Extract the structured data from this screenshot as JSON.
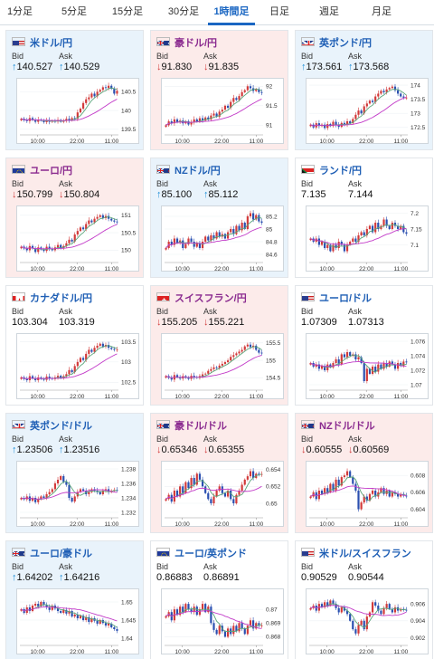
{
  "tabs": [
    {
      "label": "1分足"
    },
    {
      "label": "5分足"
    },
    {
      "label": "15分足"
    },
    {
      "label": "30分足"
    },
    {
      "label": "1時間足",
      "active": true
    },
    {
      "label": "日足"
    },
    {
      "label": "週足"
    },
    {
      "label": "月足"
    }
  ],
  "labels": {
    "bid": "Bid",
    "ask": "Ask"
  },
  "colors": {
    "up_candle": "#d23a3a",
    "down_candle": "#2a4fb0",
    "ma_short": "#5aa57a",
    "ma_long": "#c23ac8",
    "active_tab": "#1a66c2"
  },
  "cards": [
    {
      "flag": "us-jp-flag",
      "pair": "米ドル/円",
      "trend": "up",
      "bid": "140.527",
      "ask": "140.529",
      "chart_data": {
        "type": "candlestick",
        "x_ticks": [
          "10:00",
          "22:00",
          "11:00"
        ],
        "y_ticks": [
          "140.5",
          "140",
          "139.5"
        ],
        "ylim": [
          139.4,
          140.75
        ],
        "closes": [
          139.78,
          139.74,
          139.72,
          139.8,
          139.75,
          139.7,
          139.76,
          139.73,
          139.69,
          139.74,
          139.7,
          139.72,
          139.71,
          139.75,
          139.7,
          139.73,
          139.78,
          139.74,
          139.8,
          139.78,
          139.95,
          140.05,
          140.2,
          140.3,
          140.35,
          140.45,
          140.38,
          140.5,
          140.55,
          140.62,
          140.6,
          140.66,
          140.58,
          140.45,
          140.527
        ]
      }
    },
    {
      "flag": "au-flag",
      "pair": "豪ドル/円",
      "trend": "down",
      "bid": "91.830",
      "ask": "91.835",
      "chart_data": {
        "type": "candlestick",
        "x_ticks": [
          "10:00",
          "22:00",
          "11:00"
        ],
        "y_ticks": [
          "92",
          "91.5",
          "91"
        ],
        "ylim": [
          90.8,
          92.1
        ],
        "closes": [
          91.0,
          91.1,
          91.05,
          91.15,
          91.08,
          91.12,
          91.05,
          91.1,
          91.02,
          91.08,
          91.15,
          91.1,
          91.18,
          91.12,
          91.2,
          91.15,
          91.25,
          91.3,
          91.22,
          91.35,
          91.4,
          91.5,
          91.45,
          91.6,
          91.7,
          91.65,
          91.75,
          91.85,
          91.9,
          92.0,
          91.95,
          91.88,
          91.92,
          91.85,
          91.83
        ]
      }
    },
    {
      "flag": "gb-flag",
      "pair": "英ポンド/円",
      "trend": "up",
      "bid": "173.561",
      "ask": "173.568",
      "chart_data": {
        "type": "candlestick",
        "x_ticks": [
          "10:00",
          "22:00",
          "11:00"
        ],
        "y_ticks": [
          "174",
          "173.5",
          "173",
          "172.5"
        ],
        "ylim": [
          172.3,
          174.1
        ],
        "closes": [
          172.6,
          172.5,
          172.65,
          172.55,
          172.6,
          172.48,
          172.62,
          172.55,
          172.7,
          172.58,
          172.52,
          172.66,
          172.6,
          172.72,
          172.65,
          172.8,
          172.95,
          173.1,
          173.0,
          173.25,
          173.35,
          173.45,
          173.4,
          173.6,
          173.7,
          173.8,
          173.75,
          173.85,
          173.9,
          173.95,
          173.82,
          173.7,
          173.6,
          173.56,
          173.561
        ]
      }
    },
    {
      "flag": "eu-flag",
      "pair": "ユーロ/円",
      "trend": "down",
      "bid": "150.799",
      "ask": "150.804",
      "chart_data": {
        "type": "candlestick",
        "x_ticks": [
          "10:00",
          "22:00",
          "11:00"
        ],
        "y_ticks": [
          "151",
          "150.5",
          "150"
        ],
        "ylim": [
          149.7,
          151.15
        ],
        "closes": [
          150.1,
          150.05,
          150.0,
          150.12,
          150.05,
          149.95,
          150.08,
          150.02,
          149.98,
          150.1,
          150.05,
          150.0,
          150.08,
          150.15,
          150.05,
          150.12,
          150.2,
          150.3,
          150.25,
          150.45,
          150.55,
          150.65,
          150.6,
          150.75,
          150.85,
          150.8,
          150.9,
          150.95,
          151.0,
          150.92,
          150.98,
          150.9,
          150.85,
          150.82,
          150.799
        ]
      }
    },
    {
      "flag": "nz-flag",
      "pair": "NZドル/円",
      "trend": "up",
      "bid": "85.100",
      "ask": "85.112",
      "chart_data": {
        "type": "candlestick",
        "x_ticks": [
          "10:00",
          "22:00",
          "11:00"
        ],
        "y_ticks": [
          "85.2",
          "85",
          "84.8",
          "84.6"
        ],
        "ylim": [
          84.5,
          85.3
        ],
        "closes": [
          84.7,
          84.8,
          84.75,
          84.85,
          84.78,
          84.82,
          84.7,
          84.76,
          84.85,
          84.8,
          84.72,
          84.78,
          84.7,
          84.8,
          84.88,
          84.82,
          84.9,
          84.85,
          84.95,
          84.88,
          84.92,
          84.85,
          84.95,
          85.0,
          84.92,
          85.05,
          84.98,
          85.1,
          85.0,
          85.2,
          85.25,
          85.15,
          85.22,
          85.12,
          85.1
        ]
      }
    },
    {
      "flag": "za-flag",
      "pair": "ランド/円",
      "trend": "flat",
      "bid": "7.135",
      "ask": "7.144",
      "chart_data": {
        "type": "candlestick",
        "x_ticks": [
          "10:00",
          "22:00",
          "11:00"
        ],
        "y_ticks": [
          "7.2",
          "7.15",
          "7.1"
        ],
        "ylim": [
          7.05,
          7.21
        ],
        "closes": [
          7.12,
          7.11,
          7.12,
          7.1,
          7.11,
          7.09,
          7.1,
          7.08,
          7.1,
          7.09,
          7.11,
          7.1,
          7.08,
          7.1,
          7.11,
          7.12,
          7.11,
          7.13,
          7.14,
          7.13,
          7.15,
          7.16,
          7.14,
          7.17,
          7.15,
          7.16,
          7.18,
          7.16,
          7.15,
          7.17,
          7.16,
          7.15,
          7.16,
          7.14,
          7.135
        ]
      }
    },
    {
      "flag": "ca-flag",
      "pair": "カナダドル/円",
      "trend": "flat",
      "bid": "103.304",
      "ask": "103.319",
      "chart_data": {
        "type": "candlestick",
        "x_ticks": [
          "10:00",
          "22:00",
          "11:00"
        ],
        "y_ticks": [
          "103.5",
          "103",
          "102.5"
        ],
        "ylim": [
          102.35,
          103.6
        ],
        "closes": [
          102.62,
          102.58,
          102.55,
          102.65,
          102.6,
          102.55,
          102.62,
          102.58,
          102.56,
          102.64,
          102.6,
          102.58,
          102.62,
          102.66,
          102.6,
          102.65,
          102.7,
          102.8,
          102.75,
          102.9,
          103.0,
          103.1,
          103.05,
          103.2,
          103.3,
          103.25,
          103.35,
          103.4,
          103.45,
          103.38,
          103.42,
          103.35,
          103.32,
          103.3,
          103.304
        ]
      }
    },
    {
      "flag": "ch-flag",
      "pair": "スイスフラン/円",
      "trend": "down",
      "bid": "155.205",
      "ask": "155.221",
      "chart_data": {
        "type": "candlestick",
        "x_ticks": [
          "10:00",
          "22:00",
          "11:00"
        ],
        "y_ticks": [
          "155.5",
          "155",
          "154.5"
        ],
        "ylim": [
          154.2,
          155.65
        ],
        "closes": [
          154.55,
          154.5,
          154.45,
          154.58,
          154.52,
          154.48,
          154.55,
          154.5,
          154.47,
          154.56,
          154.52,
          154.5,
          154.55,
          154.6,
          154.62,
          154.7,
          154.75,
          154.8,
          154.78,
          154.85,
          154.9,
          154.95,
          155.0,
          155.1,
          155.15,
          155.2,
          155.25,
          155.3,
          155.4,
          155.45,
          155.38,
          155.42,
          155.3,
          155.22,
          155.205
        ]
      }
    },
    {
      "flag": "us-flag",
      "pair": "ユーロ/ドル",
      "trend": "flat",
      "bid": "1.07309",
      "ask": "1.07313",
      "chart_data": {
        "type": "candlestick",
        "x_ticks": [
          "10:00",
          "22:00",
          "11:00"
        ],
        "y_ticks": [
          "1.076",
          "1.074",
          "1.072",
          "1.07"
        ],
        "ylim": [
          1.0695,
          1.0765
        ],
        "closes": [
          1.073,
          1.0725,
          1.0728,
          1.0722,
          1.0726,
          1.072,
          1.0728,
          1.0724,
          1.073,
          1.0735,
          1.0728,
          1.0742,
          1.0738,
          1.0745,
          1.074,
          1.0742,
          1.0735,
          1.0738,
          1.073,
          1.0705,
          1.0722,
          1.0715,
          1.0725,
          1.0718,
          1.0728,
          1.0722,
          1.073,
          1.0725,
          1.0732,
          1.0728,
          1.0722,
          1.073,
          1.0726,
          1.0732,
          1.07309
        ]
      }
    },
    {
      "flag": "gb-flag",
      "pair": "英ポンド/ドル",
      "trend": "up",
      "bid": "1.23506",
      "ask": "1.23516",
      "chart_data": {
        "type": "candlestick",
        "x_ticks": [
          "10:00",
          "22:00",
          "11:00"
        ],
        "y_ticks": [
          "1.238",
          "1.236",
          "1.234",
          "1.232"
        ],
        "ylim": [
          1.2315,
          1.2385
        ],
        "closes": [
          1.234,
          1.2338,
          1.2342,
          1.2336,
          1.234,
          1.2334,
          1.2338,
          1.2342,
          1.234,
          1.2345,
          1.2348,
          1.2352,
          1.236,
          1.2365,
          1.237,
          1.2362,
          1.2358,
          1.234,
          1.2335,
          1.2342,
          1.2348,
          1.2352,
          1.235,
          1.2345,
          1.2348,
          1.2352,
          1.235,
          1.2348,
          1.2345,
          1.235,
          1.2352,
          1.2348,
          1.235,
          1.2351,
          1.23506
        ]
      }
    },
    {
      "flag": "au-flag",
      "pair": "豪ドル/ドル",
      "trend": "down",
      "bid": "0.65346",
      "ask": "0.65355",
      "chart_data": {
        "type": "candlestick",
        "x_ticks": [
          "10:00",
          "22:00",
          "11:00"
        ],
        "y_ticks": [
          "0.654",
          "0.652",
          "0.65"
        ],
        "ylim": [
          0.6485,
          0.6545
        ],
        "closes": [
          0.6505,
          0.651,
          0.6502,
          0.6515,
          0.6508,
          0.652,
          0.6512,
          0.6525,
          0.6518,
          0.653,
          0.6522,
          0.6535,
          0.6528,
          0.652,
          0.6512,
          0.6505,
          0.65,
          0.6508,
          0.6515,
          0.652,
          0.6512,
          0.6508,
          0.6515,
          0.6505,
          0.65,
          0.651,
          0.6515,
          0.6522,
          0.6528,
          0.6532,
          0.6538,
          0.653,
          0.6535,
          0.6534,
          0.65346
        ]
      }
    },
    {
      "flag": "nz-flag",
      "pair": "NZドル/ドル",
      "trend": "down",
      "bid": "0.60555",
      "ask": "0.60569",
      "chart_data": {
        "type": "candlestick",
        "x_ticks": [
          "10:00",
          "22:00",
          "11:00"
        ],
        "y_ticks": [
          "0.608",
          "0.606",
          "0.604"
        ],
        "ylim": [
          0.6032,
          0.6092
        ],
        "closes": [
          0.6055,
          0.606,
          0.6052,
          0.6062,
          0.6058,
          0.6065,
          0.606,
          0.607,
          0.6062,
          0.6075,
          0.6068,
          0.6078,
          0.608,
          0.6085,
          0.6078,
          0.607,
          0.6062,
          0.604,
          0.6048,
          0.6055,
          0.605,
          0.6058,
          0.6062,
          0.6055,
          0.606,
          0.6065,
          0.6058,
          0.6062,
          0.6055,
          0.606,
          0.6058,
          0.6055,
          0.6058,
          0.6056,
          0.60555
        ]
      }
    },
    {
      "flag": "au-flag",
      "pair": "ユーロ/豪ドル",
      "trend": "up",
      "bid": "1.64202",
      "ask": "1.64216",
      "chart_data": {
        "type": "candlestick",
        "x_ticks": [
          "10:00",
          "22:00",
          "11:00"
        ],
        "y_ticks": [
          "1.65",
          "1.645",
          "1.64"
        ],
        "ylim": [
          1.6385,
          1.6525
        ],
        "closes": [
          1.648,
          1.647,
          1.6485,
          1.6475,
          1.649,
          1.6495,
          1.6488,
          1.65,
          1.6492,
          1.6485,
          1.6478,
          1.649,
          1.6482,
          1.6475,
          1.647,
          1.6478,
          1.6468,
          1.6475,
          1.646,
          1.6465,
          1.6455,
          1.6462,
          1.645,
          1.6458,
          1.6445,
          1.6455,
          1.6448,
          1.644,
          1.645,
          1.6442,
          1.6435,
          1.644,
          1.643,
          1.6425,
          1.64202
        ]
      }
    },
    {
      "flag": "eu-flag",
      "pair": "ユーロ/英ポンド",
      "trend": "flat",
      "bid": "0.86883",
      "ask": "0.86891",
      "chart_data": {
        "type": "candlestick",
        "x_ticks": [
          "10:00",
          "22:00",
          "11:00"
        ],
        "y_ticks": [
          "0.87",
          "0.869",
          "0.868"
        ],
        "ylim": [
          0.8675,
          0.8712
        ],
        "closes": [
          0.8695,
          0.8698,
          0.8692,
          0.87,
          0.8696,
          0.8702,
          0.8698,
          0.8704,
          0.87,
          0.8698,
          0.8702,
          0.8696,
          0.87,
          0.8704,
          0.8698,
          0.8702,
          0.869,
          0.8685,
          0.8682,
          0.8688,
          0.8684,
          0.868,
          0.8686,
          0.8682,
          0.8688,
          0.8684,
          0.869,
          0.8686,
          0.8682,
          0.8688,
          0.8692,
          0.8686,
          0.869,
          0.8688,
          0.86883
        ]
      }
    },
    {
      "flag": "us-ch-flag",
      "pair": "米ドル/スイスフラン",
      "trend": "flat",
      "bid": "0.90529",
      "ask": "0.90544",
      "chart_data": {
        "type": "candlestick",
        "x_ticks": [
          "10:00",
          "22:00",
          "11:00"
        ],
        "y_ticks": [
          "0.906",
          "0.904",
          "0.902"
        ],
        "ylim": [
          0.9013,
          0.9073
        ],
        "closes": [
          0.9055,
          0.9058,
          0.9052,
          0.906,
          0.9056,
          0.9062,
          0.9058,
          0.9064,
          0.906,
          0.9055,
          0.905,
          0.9056,
          0.9052,
          0.9048,
          0.904,
          0.903,
          0.9025,
          0.9035,
          0.904,
          0.903,
          0.9045,
          0.905,
          0.9062,
          0.9058,
          0.9052,
          0.9048,
          0.9055,
          0.906,
          0.9054,
          0.905,
          0.9056,
          0.9052,
          0.9054,
          0.9053,
          0.90529
        ]
      }
    }
  ]
}
